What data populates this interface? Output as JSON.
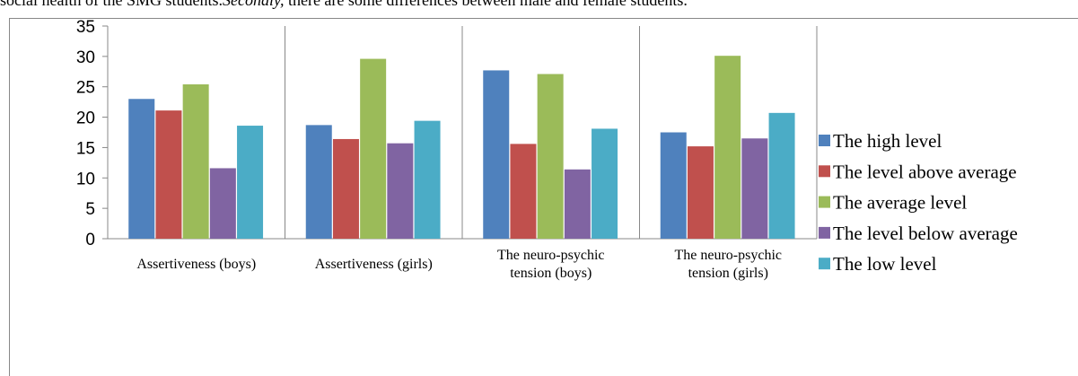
{
  "document_text": {
    "before": "social health of the SMG students.",
    "italic": "Secondly,",
    "after": " there are some differences between male and female students."
  },
  "chart_data": {
    "type": "bar",
    "categories": [
      "Assertiveness (boys)",
      "Assertiveness (girls)",
      "The neuro-psychic tension (boys)",
      "The neuro-psychic tension (girls)"
    ],
    "series": [
      {
        "name": "The high level",
        "color": "#4f81bd",
        "values": [
          23,
          18.7,
          27.7,
          17.5
        ]
      },
      {
        "name": "The level above average",
        "color": "#c0504d",
        "values": [
          21.1,
          16.4,
          15.6,
          15.2
        ]
      },
      {
        "name": "The average level",
        "color": "#9bbb59",
        "values": [
          25.4,
          29.6,
          27.1,
          30.1
        ]
      },
      {
        "name": "The level below average",
        "color": "#8064a2",
        "values": [
          11.6,
          15.7,
          11.4,
          16.5
        ]
      },
      {
        "name": "The low level",
        "color": "#4bacc6",
        "values": [
          18.6,
          19.4,
          18.1,
          20.7
        ]
      }
    ],
    "ylim": [
      0,
      35
    ],
    "yticks": [
      0,
      5,
      10,
      15,
      20,
      25,
      30,
      35
    ],
    "grid": "x",
    "legend": "right"
  }
}
